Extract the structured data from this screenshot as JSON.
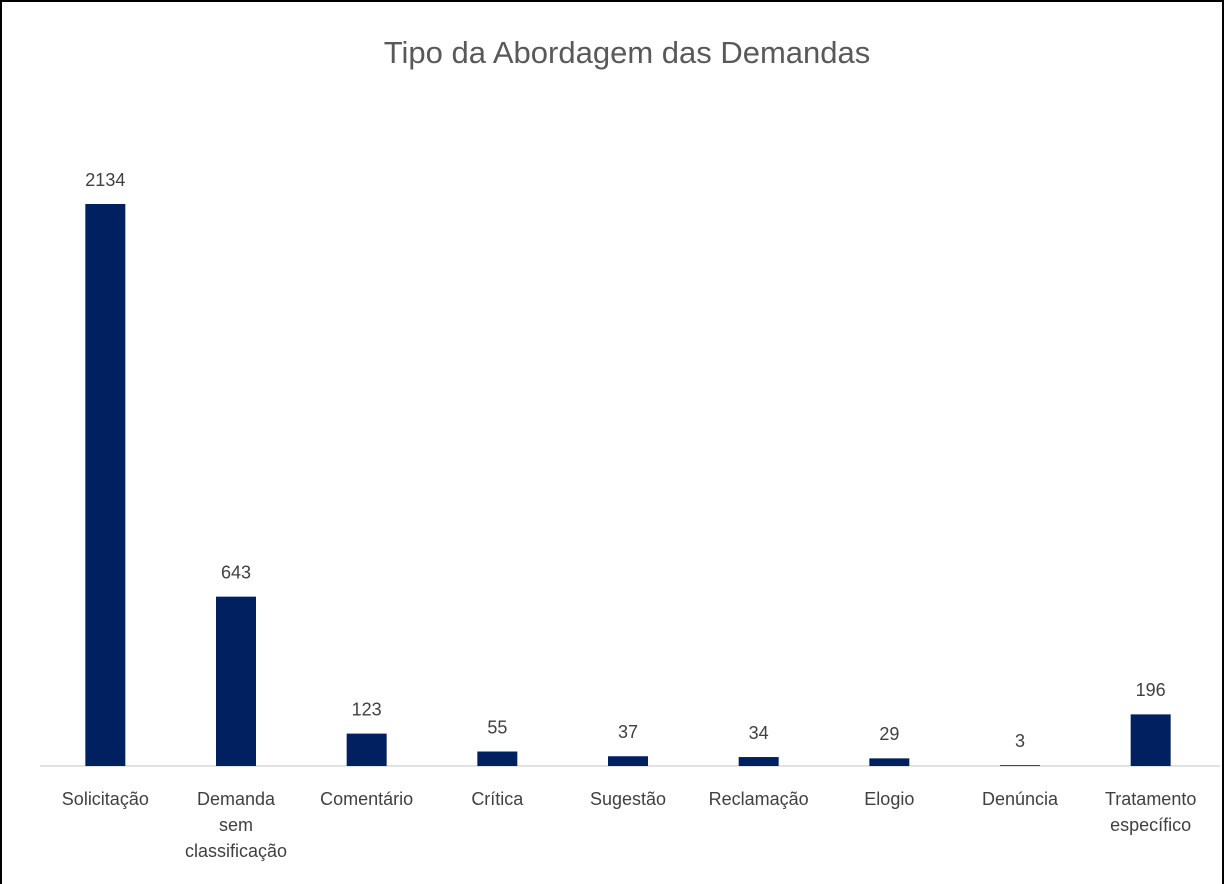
{
  "chart_data": {
    "type": "bar",
    "title": "Tipo da Abordagem das Demandas",
    "categories": [
      "Solicitação",
      "Demanda sem classificação",
      "Comentário",
      "Crítica",
      "Sugestão",
      "Reclamação",
      "Elogio",
      "Denúncia",
      "Tratamento específico"
    ],
    "values": [
      2134,
      643,
      123,
      55,
      37,
      34,
      29,
      3,
      196
    ],
    "color": "#002060"
  }
}
